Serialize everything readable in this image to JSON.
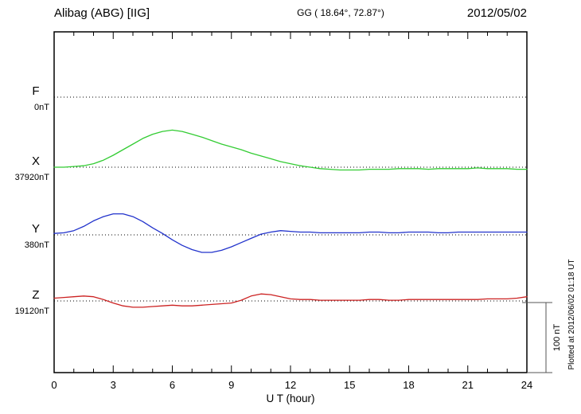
{
  "header": {
    "station": "Alibag (ABG)  [IIG]",
    "coords": "GG ( 18.64°,  72.87°)",
    "date": "2012/05/02"
  },
  "axis": {
    "xlabel": "U T (hour)"
  },
  "scalebar": {
    "label": "100 nT"
  },
  "footer": {
    "plotted_at": "Plotted at 2012/06/02 01:18 UT"
  },
  "chart_data": {
    "type": "line",
    "title": "Alibag (ABG) [IIG] geomagnetic field variations, 2012/05/02",
    "xlabel": "U T (hour)",
    "x_range": [
      0,
      24
    ],
    "x_step_hours": 0.5,
    "x_major_ticks": [
      0,
      3,
      6,
      9,
      12,
      15,
      18,
      21,
      24
    ],
    "scale_bar_nT": 100,
    "legend_position": "left-of-traces",
    "grid": "dotted-baselines-only",
    "series": [
      {
        "name": "F",
        "color": "#ff9900",
        "baseline_label": "0nT",
        "plotted": false,
        "offsets_nT": [
          0,
          0,
          0,
          0,
          0,
          0,
          0,
          0,
          0,
          0,
          0,
          0,
          0,
          0,
          0,
          0,
          0,
          0,
          0,
          0,
          0,
          0,
          0,
          0,
          0,
          0,
          0,
          0,
          0,
          0,
          0,
          0,
          0,
          0,
          0,
          0,
          0,
          0,
          0,
          0,
          0,
          0,
          0,
          0,
          0,
          0,
          0,
          0,
          0
        ]
      },
      {
        "name": "X",
        "color": "#33cc33",
        "baseline_label": "37920nT",
        "plotted": true,
        "offsets_nT": [
          0,
          0,
          1,
          2,
          5,
          10,
          17,
          25,
          33,
          41,
          47,
          51,
          53,
          51,
          47,
          43,
          38,
          33,
          29,
          25,
          20,
          16,
          12,
          8,
          5,
          2,
          0,
          -2,
          -3,
          -4,
          -4,
          -4,
          -3,
          -3,
          -3,
          -2,
          -2,
          -2,
          -3,
          -2,
          -2,
          -2,
          -2,
          -1,
          -2,
          -2,
          -2,
          -3,
          -3
        ]
      },
      {
        "name": "Y",
        "color": "#2233cc",
        "baseline_label": "380nT",
        "plotted": true,
        "offsets_nT": [
          2,
          3,
          6,
          12,
          20,
          26,
          30,
          30,
          26,
          19,
          10,
          2,
          -7,
          -15,
          -21,
          -25,
          -25,
          -22,
          -17,
          -11,
          -5,
          1,
          4,
          6,
          5,
          4,
          4,
          3,
          3,
          3,
          3,
          3,
          4,
          4,
          3,
          3,
          4,
          4,
          4,
          3,
          3,
          4,
          4,
          4,
          4,
          4,
          4,
          4,
          4
        ]
      },
      {
        "name": "Z",
        "color": "#cc2222",
        "baseline_label": "19120nT",
        "plotted": true,
        "offsets_nT": [
          4,
          5,
          6,
          7,
          6,
          2,
          -3,
          -7,
          -9,
          -9,
          -8,
          -7,
          -6,
          -7,
          -7,
          -6,
          -5,
          -4,
          -3,
          1,
          7,
          10,
          9,
          6,
          3,
          2,
          2,
          1,
          1,
          1,
          1,
          1,
          2,
          2,
          1,
          1,
          2,
          2,
          2,
          2,
          2,
          2,
          2,
          2,
          3,
          3,
          3,
          4,
          6
        ]
      }
    ]
  }
}
